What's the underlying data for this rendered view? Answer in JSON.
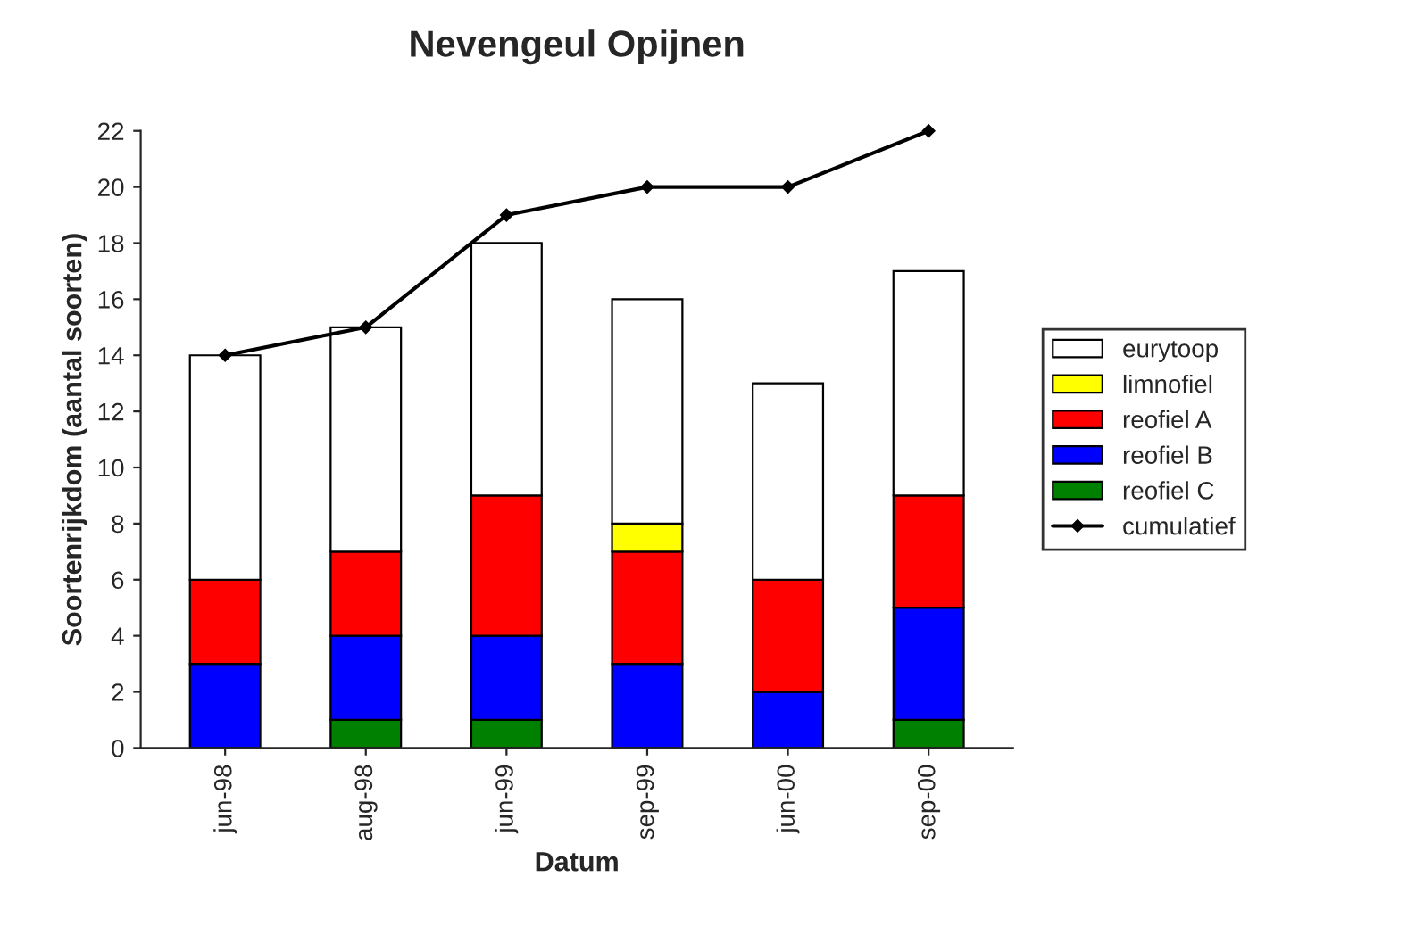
{
  "chart_data": {
    "type": "bar",
    "title": "Nevengeul Opijnen",
    "xlabel": "Datum",
    "ylabel": "Soortenrijkdom (aantal soorten)",
    "categories": [
      "jun-98",
      "aug-98",
      "jun-99",
      "sep-99",
      "jun-00",
      "sep-00"
    ],
    "stacked": true,
    "ylim": [
      0,
      22
    ],
    "yticks": [
      0,
      2,
      4,
      6,
      8,
      10,
      12,
      14,
      16,
      18,
      20,
      22
    ],
    "grid": false,
    "legend": "right",
    "series": [
      {
        "name": "reofiel C",
        "color": "#008000",
        "values": [
          null,
          1,
          1,
          null,
          null,
          1
        ]
      },
      {
        "name": "reofiel B",
        "color": "#0000ff",
        "values": [
          3,
          3,
          3,
          3,
          2,
          4
        ]
      },
      {
        "name": "reofiel A",
        "color": "#ff0000",
        "values": [
          3,
          3,
          5,
          4,
          4,
          4
        ]
      },
      {
        "name": "limnofiel",
        "color": "#ffff00",
        "values": [
          null,
          null,
          null,
          1,
          null,
          null
        ]
      },
      {
        "name": "eurytoop",
        "color": "#ffffff",
        "values": [
          8,
          8,
          9,
          8,
          7,
          8
        ]
      },
      {
        "name": "cumulatief",
        "type": "line",
        "color": "#000000",
        "marker": "diamond",
        "line_style": "solid",
        "values": [
          14,
          15,
          19,
          20,
          20,
          22
        ]
      }
    ]
  }
}
